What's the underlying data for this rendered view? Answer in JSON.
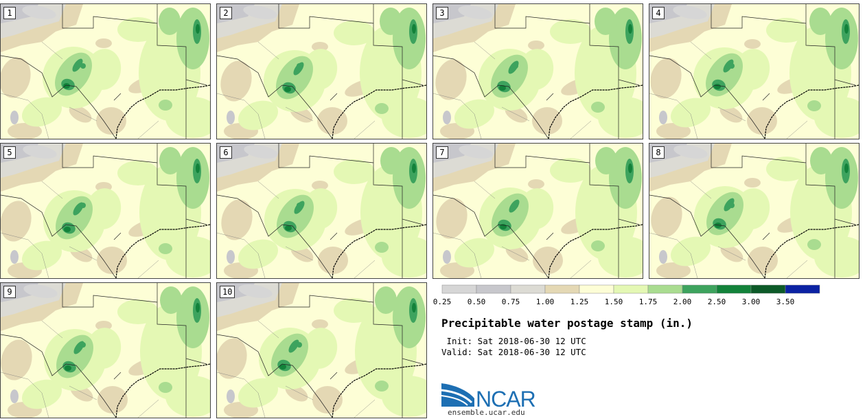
{
  "chart_data": {
    "type": "heatmap",
    "title": "Precipitable water postage stamp (in.)",
    "units": "in.",
    "members": [
      "1",
      "2",
      "3",
      "4",
      "5",
      "6",
      "7",
      "8",
      "9",
      "10"
    ],
    "colorbar": {
      "ticks": [
        "0.25",
        "0.50",
        "0.75",
        "1.00",
        "1.25",
        "1.50",
        "1.75",
        "2.00",
        "2.50",
        "3.00",
        "3.50"
      ],
      "bins": [
        {
          "min": 0.25,
          "max": 0.5,
          "color": "#d6d6d6"
        },
        {
          "min": 0.5,
          "max": 0.75,
          "color": "#c7c7cc"
        },
        {
          "min": 0.75,
          "max": 1.0,
          "color": "#dcdbd4"
        },
        {
          "min": 1.0,
          "max": 1.25,
          "color": "#e4d8b4"
        },
        {
          "min": 1.25,
          "max": 1.5,
          "color": "#fdfed6"
        },
        {
          "min": 1.5,
          "max": 1.75,
          "color": "#e4f8b4"
        },
        {
          "min": 1.75,
          "max": 2.0,
          "color": "#a9dc90"
        },
        {
          "min": 2.0,
          "max": 2.5,
          "color": "#3da35e"
        },
        {
          "min": 2.5,
          "max": 3.0,
          "color": "#12823a"
        },
        {
          "min": 3.0,
          "max": 3.5,
          "color": "#0c5a28"
        },
        {
          "min": 3.5,
          "max": null,
          "color": "#0b22a3"
        }
      ]
    }
  },
  "init_line": " Init: Sat 2018-06-30 12 UTC",
  "valid_line": "Valid: Sat 2018-06-30 12 UTC",
  "logo": {
    "text": "NCAR",
    "url": "ensemble.ucar.edu",
    "brand_color": "#1d6fb3"
  }
}
